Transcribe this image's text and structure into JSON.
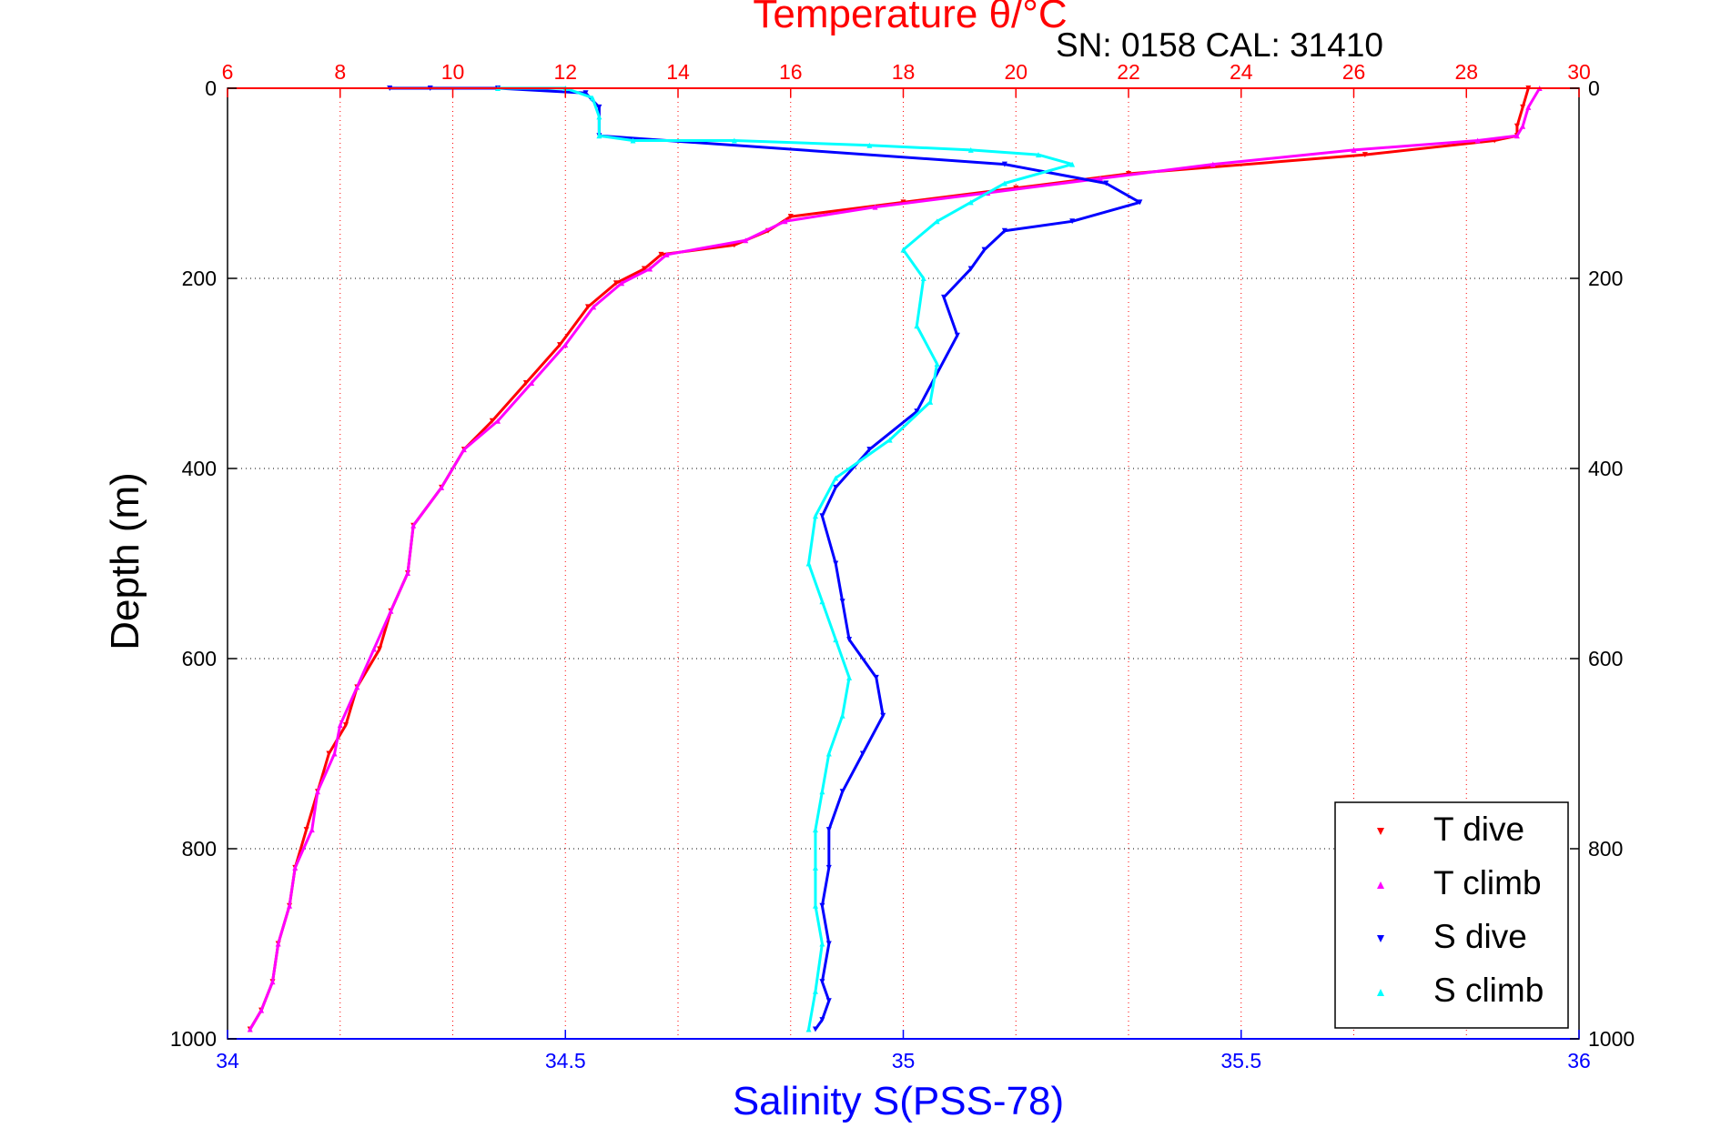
{
  "chart_data": {
    "type": "scatter",
    "title": "Temperature θ/°C",
    "subtitle": "SN: 0158  CAL: 31410",
    "xlabel": "Salinity S(PSS-78)",
    "x2label": "Temperature θ/°C",
    "ylabel": "Depth (m)",
    "ylim": [
      0,
      1000
    ],
    "y_reversed": true,
    "xlim": [
      34,
      36
    ],
    "x2lim": [
      6,
      30
    ],
    "x_ticks": [
      "34",
      "34.5",
      "35",
      "35.5",
      "36"
    ],
    "x2_ticks": [
      "6",
      "8",
      "10",
      "12",
      "14",
      "16",
      "18",
      "20",
      "22",
      "24",
      "26",
      "28",
      "30"
    ],
    "y_ticks": [
      "0",
      "200",
      "400",
      "600",
      "800",
      "1000"
    ],
    "grid": true,
    "legend_position": "bottom-right",
    "colors": {
      "t_dive": "#ff0000",
      "t_climb": "#ff00ff",
      "s_dive": "#0000ff",
      "s_climb": "#00ffff",
      "salinity_axis": "#0000ff",
      "temperature_axis": "#ff0000"
    },
    "series": [
      {
        "name": "T dive",
        "axis": "temperature",
        "color": "#ff0000",
        "marker": "triangle-down",
        "x": [
          29.1,
          29.0,
          28.9,
          28.9,
          28.5,
          26.2,
          22.0,
          20.0,
          18.0,
          16.0,
          15.6,
          15.0,
          13.7,
          13.4,
          12.9,
          12.4,
          11.9,
          11.3,
          10.7,
          10.2,
          9.8,
          9.3,
          9.2,
          8.9,
          8.7,
          8.3,
          8.1,
          7.8,
          7.6,
          7.4,
          7.2,
          7.1,
          6.9,
          6.8,
          6.6,
          6.4
        ],
        "y": [
          0,
          20,
          40,
          50,
          55,
          70,
          90,
          105,
          120,
          135,
          150,
          165,
          175,
          190,
          205,
          230,
          270,
          310,
          350,
          380,
          420,
          460,
          510,
          550,
          590,
          630,
          670,
          700,
          740,
          780,
          820,
          860,
          900,
          940,
          970,
          990
        ]
      },
      {
        "name": "T climb",
        "axis": "temperature",
        "color": "#ff00ff",
        "marker": "triangle-up",
        "x": [
          29.3,
          29.1,
          29.0,
          28.9,
          28.2,
          26.0,
          23.5,
          21.5,
          19.5,
          17.5,
          15.9,
          15.2,
          13.8,
          13.5,
          13.0,
          12.5,
          12.0,
          11.4,
          10.8,
          10.2,
          9.8,
          9.3,
          9.2,
          8.9,
          8.6,
          8.3,
          8.0,
          7.9,
          7.6,
          7.5,
          7.2,
          7.1,
          6.9,
          6.8,
          6.6,
          6.4
        ],
        "y": [
          0,
          20,
          40,
          50,
          55,
          65,
          80,
          95,
          110,
          125,
          140,
          160,
          175,
          190,
          205,
          230,
          270,
          310,
          350,
          380,
          420,
          460,
          510,
          550,
          590,
          630,
          670,
          700,
          740,
          780,
          820,
          860,
          900,
          940,
          970,
          990
        ]
      },
      {
        "name": "S dive",
        "axis": "salinity",
        "color": "#0000ff",
        "marker": "triangle-down",
        "x": [
          34.24,
          34.3,
          34.4,
          34.53,
          34.55,
          34.55,
          35.15,
          35.3,
          35.35,
          35.25,
          35.15,
          35.12,
          35.1,
          35.06,
          35.08,
          35.05,
          35.02,
          34.95,
          34.9,
          34.88,
          34.9,
          34.91,
          34.92,
          34.96,
          34.97,
          34.94,
          34.91,
          34.89,
          34.89,
          34.88,
          34.89,
          34.88,
          34.89,
          34.88,
          34.87
        ],
        "y": [
          0,
          0,
          0,
          5,
          20,
          50,
          80,
          100,
          120,
          140,
          150,
          170,
          190,
          220,
          260,
          300,
          340,
          380,
          420,
          450,
          500,
          540,
          580,
          620,
          660,
          700,
          740,
          780,
          820,
          860,
          900,
          940,
          960,
          980,
          990
        ]
      },
      {
        "name": "S climb",
        "axis": "salinity",
        "color": "#00ffff",
        "marker": "triangle-up",
        "x": [
          34.4,
          34.5,
          34.54,
          34.55,
          34.55,
          34.6,
          34.75,
          34.95,
          35.1,
          35.2,
          35.25,
          35.15,
          35.1,
          35.05,
          35.0,
          35.03,
          35.02,
          35.05,
          35.04,
          34.98,
          34.9,
          34.87,
          34.86,
          34.88,
          34.9,
          34.92,
          34.91,
          34.89,
          34.88,
          34.87,
          34.87,
          34.87,
          34.88,
          34.87,
          34.86
        ],
        "y": [
          0,
          0,
          10,
          30,
          50,
          55,
          55,
          60,
          65,
          70,
          80,
          100,
          120,
          140,
          170,
          200,
          250,
          290,
          330,
          370,
          410,
          450,
          500,
          540,
          580,
          620,
          660,
          700,
          740,
          780,
          820,
          860,
          900,
          950,
          990
        ]
      }
    ]
  }
}
